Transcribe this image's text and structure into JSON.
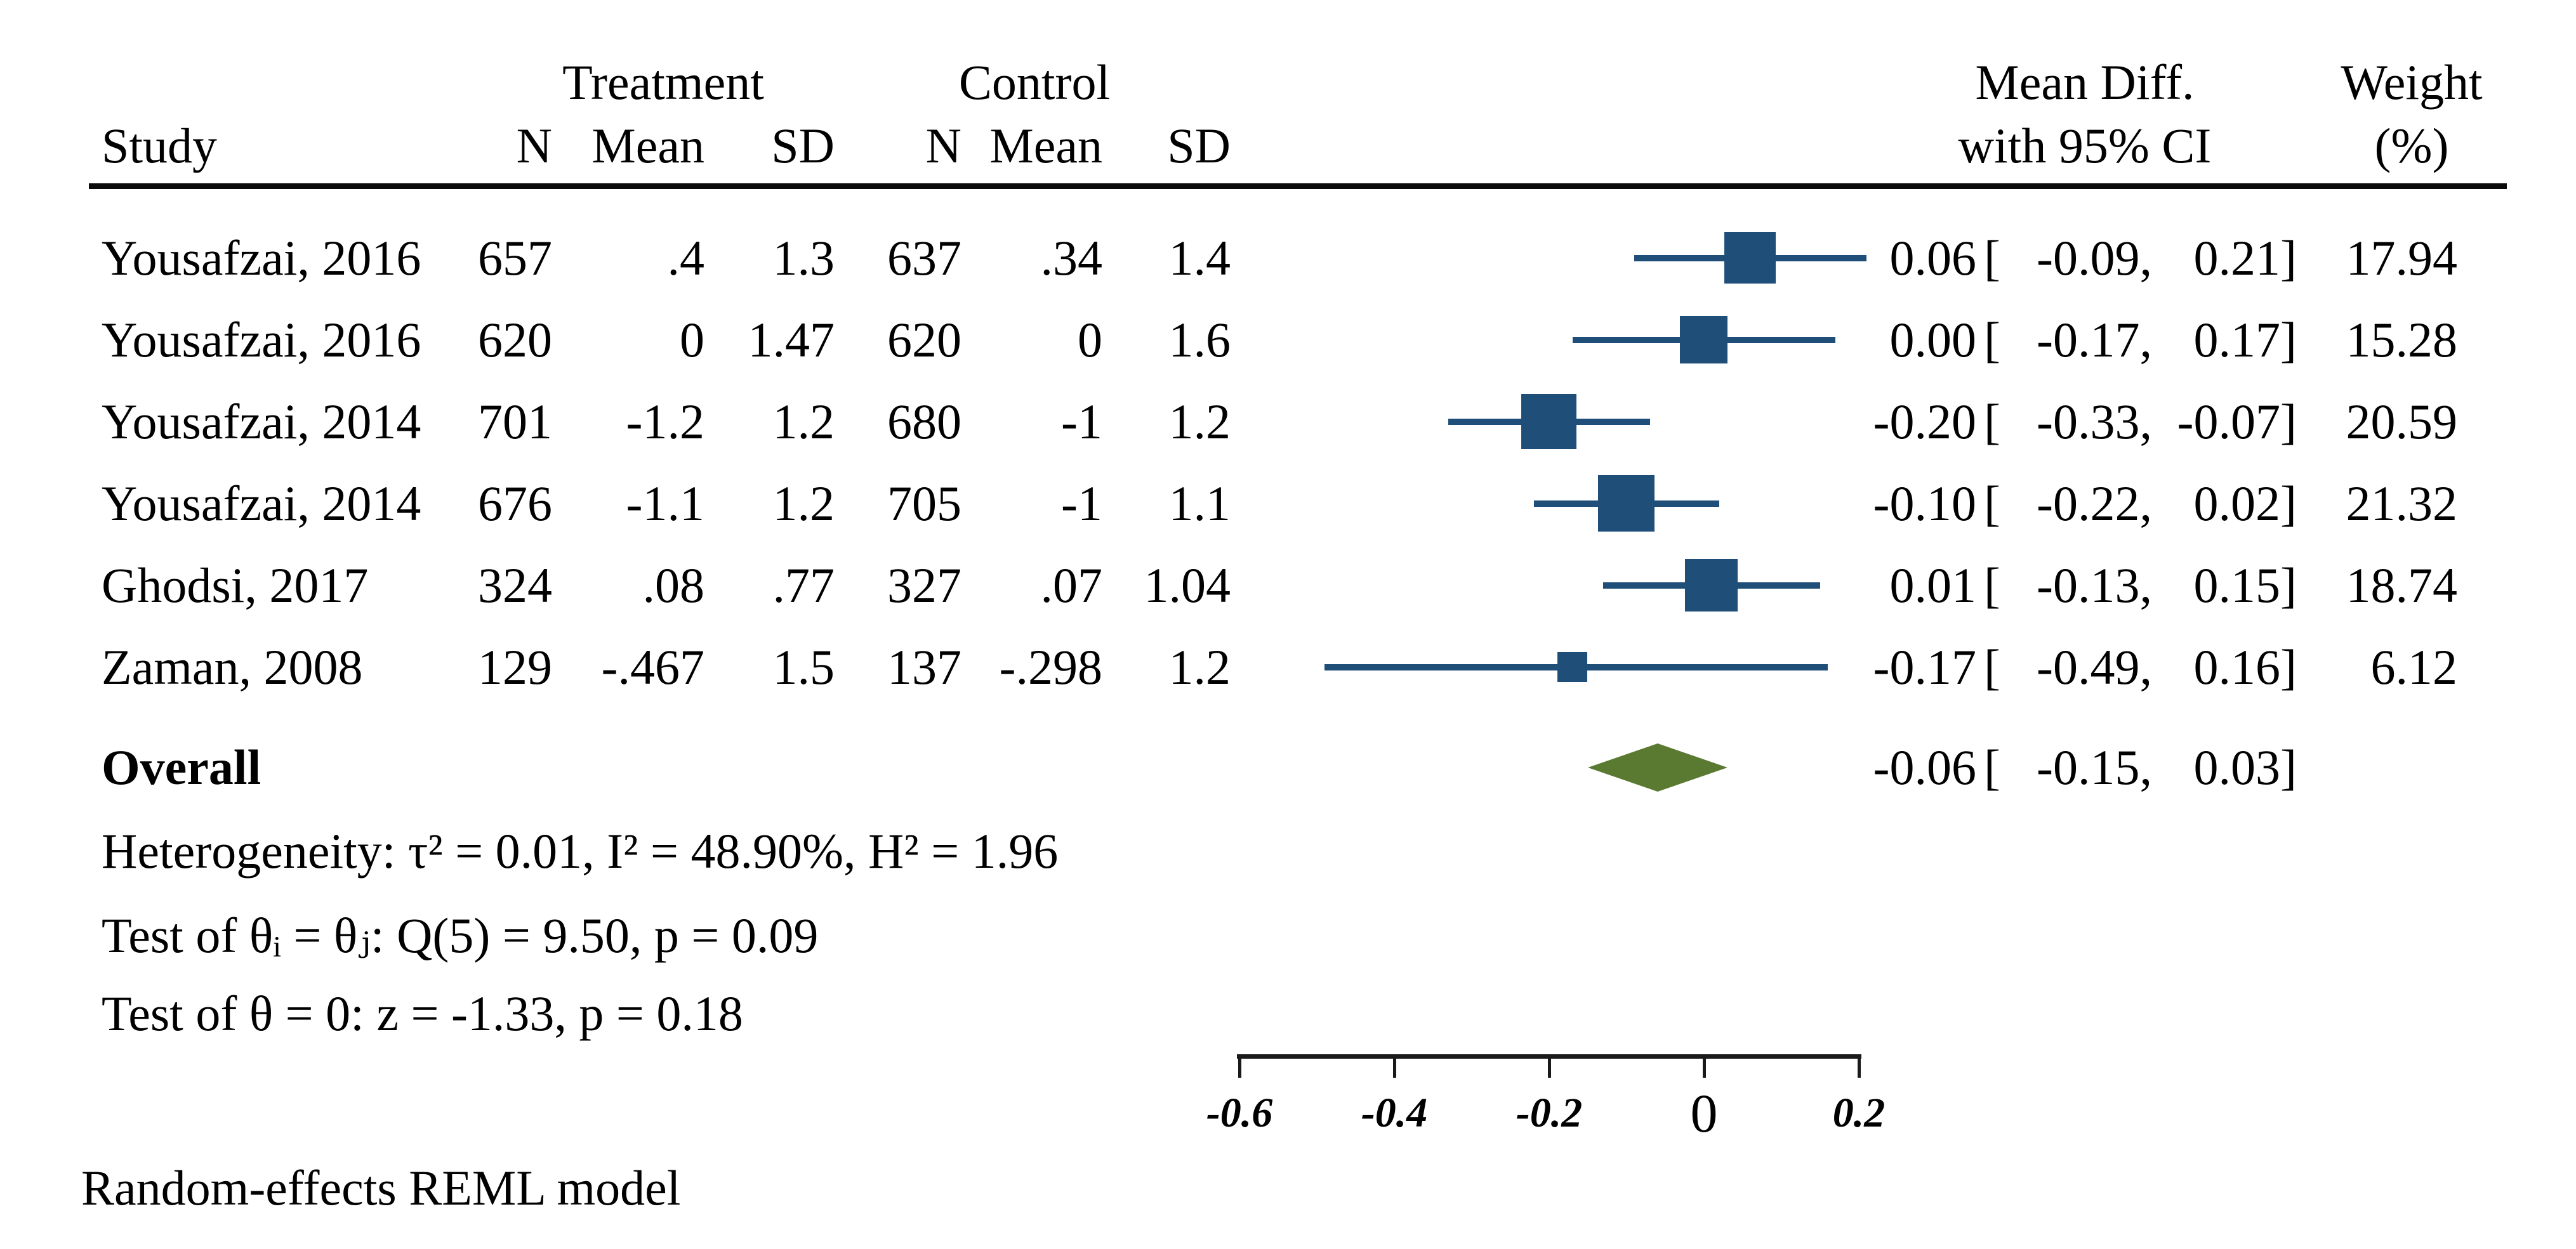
{
  "header": {
    "study": "Study",
    "treatment_group": "Treatment",
    "control_group": "Control",
    "n": "N",
    "mean": "Mean",
    "sd": "SD",
    "effect_line1": "Mean Diff.",
    "effect_line2": "with 95% CI",
    "weight_line1": "Weight",
    "weight_line2": "(%)"
  },
  "colors": {
    "marker_navy": "#1f4e79",
    "ci_navy": "#1f4e79",
    "diamond_green": "#5a7a32",
    "text_black": "#000000"
  },
  "chart_data": {
    "type": "forest",
    "title": "",
    "effect_label": "Mean Diff. with 95% CI",
    "axis_range": [
      -0.6,
      0.2
    ],
    "x_ticks": [
      {
        "label": "-0.6",
        "value": -0.6
      },
      {
        "label": "-0.4",
        "value": -0.4
      },
      {
        "label": "-0.2",
        "value": -0.2
      },
      {
        "label": "0",
        "value": 0
      },
      {
        "label": "0.2",
        "value": 0.2
      }
    ],
    "studies": [
      {
        "study": "Yousafzai, 2016",
        "treatment": {
          "n": "657",
          "mean": ".4",
          "sd": "1.3"
        },
        "control": {
          "n": "637",
          "mean": ".34",
          "sd": "1.4"
        },
        "effect": {
          "est": 0.06,
          "lo": -0.09,
          "hi": 0.21,
          "est_text": "0.06",
          "lo_text": "-0.09",
          "hi_text": "0.21"
        },
        "weight": 17.94,
        "weight_text": "17.94"
      },
      {
        "study": "Yousafzai, 2016",
        "treatment": {
          "n": "620",
          "mean": "0",
          "sd": "1.47"
        },
        "control": {
          "n": "620",
          "mean": "0",
          "sd": "1.6"
        },
        "effect": {
          "est": 0.0,
          "lo": -0.17,
          "hi": 0.17,
          "est_text": "0.00",
          "lo_text": "-0.17",
          "hi_text": "0.17"
        },
        "weight": 15.28,
        "weight_text": "15.28"
      },
      {
        "study": "Yousafzai, 2014",
        "treatment": {
          "n": "701",
          "mean": "-1.2",
          "sd": "1.2"
        },
        "control": {
          "n": "680",
          "mean": "-1",
          "sd": "1.2"
        },
        "effect": {
          "est": -0.2,
          "lo": -0.33,
          "hi": -0.07,
          "est_text": "-0.20",
          "lo_text": "-0.33",
          "hi_text": "-0.07"
        },
        "weight": 20.59,
        "weight_text": "20.59"
      },
      {
        "study": "Yousafzai, 2014",
        "treatment": {
          "n": "676",
          "mean": "-1.1",
          "sd": "1.2"
        },
        "control": {
          "n": "705",
          "mean": "-1",
          "sd": "1.1"
        },
        "effect": {
          "est": -0.1,
          "lo": -0.22,
          "hi": 0.02,
          "est_text": "-0.10",
          "lo_text": "-0.22",
          "hi_text": "0.02"
        },
        "weight": 21.32,
        "weight_text": "21.32"
      },
      {
        "study": "Ghodsi, 2017",
        "treatment": {
          "n": "324",
          "mean": ".08",
          "sd": ".77"
        },
        "control": {
          "n": "327",
          "mean": ".07",
          "sd": "1.04"
        },
        "effect": {
          "est": 0.01,
          "lo": -0.13,
          "hi": 0.15,
          "est_text": "0.01",
          "lo_text": "-0.13",
          "hi_text": "0.15"
        },
        "weight": 18.74,
        "weight_text": "18.74"
      },
      {
        "study": "Zaman, 2008",
        "treatment": {
          "n": "129",
          "mean": "-.467",
          "sd": "1.5"
        },
        "control": {
          "n": "137",
          "mean": "-.298",
          "sd": "1.2"
        },
        "effect": {
          "est": -0.17,
          "lo": -0.49,
          "hi": 0.16,
          "est_text": "-0.17",
          "lo_text": "-0.49",
          "hi_text": "0.16"
        },
        "weight": 6.12,
        "weight_text": "6.12"
      }
    ],
    "overall": {
      "label": "Overall",
      "effect": {
        "est": -0.06,
        "lo": -0.15,
        "hi": 0.03,
        "est_text": "-0.06",
        "lo_text": "-0.15",
        "hi_text": "0.03"
      }
    }
  },
  "stats": {
    "heterogeneity": "Heterogeneity: τ² = 0.01, I² = 48.90%, H² = 1.96",
    "test_group": "Test of θᵢ = θⱼ: Q(5) = 9.50, p = 0.09",
    "test_overall": "Test of θ = 0: z = -1.33, p = 0.18"
  },
  "footer": "Random-effects REML model"
}
